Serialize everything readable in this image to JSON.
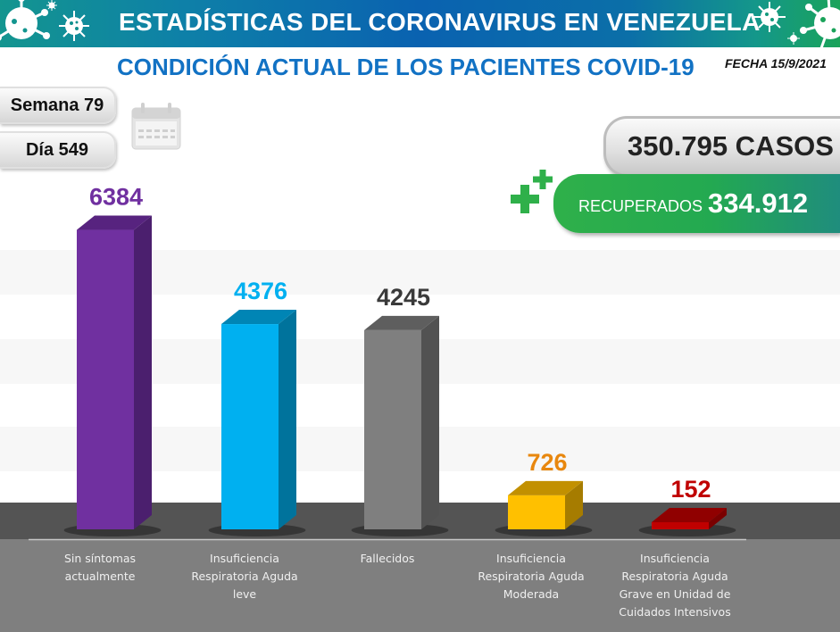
{
  "header": {
    "title": "ESTADÍSTICAS DEL CORONAVIRUS EN VENEZUELA",
    "subtitle": "CONDICIÓN ACTUAL DE LOS PACIENTES COVID-19",
    "date": "FECHA 15/9/2021",
    "icons": [
      "virus-icon",
      "calendar-icon",
      "medical-cross-icon"
    ]
  },
  "info": {
    "week": "Semana 79",
    "day": "Día 549"
  },
  "totals": {
    "cases": "350.795 CASOS",
    "recovered_label": "RECUPERADOS",
    "recovered_value": "334.912"
  },
  "colors": {
    "banner_start": "#13958f",
    "banner_mid": "#0a62b0",
    "banner_end": "#1aa35a",
    "subtitle": "#1272c4",
    "recovered": "#2fb04a"
  },
  "chart_data": {
    "type": "bar",
    "style": "3d-column",
    "title": "CONDICIÓN ACTUAL DE LOS PACIENTES COVID-19",
    "xlabel": "",
    "ylabel": "",
    "ylim": [
      0,
      7000
    ],
    "grid": "horizontal-bands",
    "legend": "none",
    "categories": [
      [
        "Sin síntomas",
        "actualmente"
      ],
      [
        "Insuficiencia",
        "Respiratoria Aguda",
        "leve"
      ],
      [
        "Fallecidos"
      ],
      [
        "Insuficiencia",
        "Respiratoria Aguda",
        "Moderada"
      ],
      [
        "Insuficiencia",
        "Respiratoria Aguda",
        "Grave en Unidad de",
        "Cuidados Intensivos"
      ]
    ],
    "values": [
      6384,
      4376,
      4245,
      726,
      152
    ],
    "value_labels": [
      "6384",
      "4376",
      "4245",
      "726",
      "152"
    ],
    "bar_colors": [
      {
        "front": "#7030a0",
        "side": "#4b1f6e",
        "top": "#57237f",
        "label": "#7030a0"
      },
      {
        "front": "#00b0f0",
        "side": "#00739c",
        "top": "#0085b5",
        "label": "#00b0f0"
      },
      {
        "front": "#7f7f7f",
        "side": "#525252",
        "top": "#5e5e5e",
        "label": "#3a3a3a"
      },
      {
        "front": "#ffc000",
        "side": "#a67c00",
        "top": "#c29000",
        "label": "#e8870e"
      },
      {
        "front": "#c00000",
        "side": "#7a0000",
        "top": "#900000",
        "label": "#c00000"
      }
    ]
  }
}
